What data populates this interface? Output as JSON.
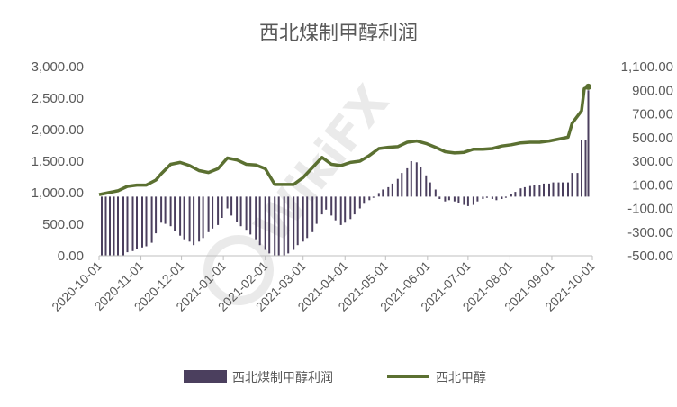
{
  "chart_data": {
    "type": "bar+line",
    "title": "西北煤制甲醇利润",
    "left_axis": {
      "ylim": [
        0,
        3000
      ],
      "ticks": [
        "3,000.00",
        "2,500.00",
        "2,000.00",
        "1,500.00",
        "1,000.00",
        "500.00",
        "0.00"
      ],
      "tick_values": [
        3000,
        2500,
        2000,
        1500,
        1000,
        500,
        0
      ]
    },
    "right_axis": {
      "ylim": [
        -500,
        1100
      ],
      "ticks": [
        "1,100.00",
        "900.00",
        "700.00",
        "500.00",
        "300.00",
        "100.00",
        "-100.00",
        "-300.00",
        "-500.00"
      ],
      "tick_values": [
        1100,
        900,
        700,
        500,
        300,
        100,
        -100,
        -300,
        -500
      ]
    },
    "x_axis": {
      "start": "2020-10-01",
      "end": "2021-10-01",
      "ticks": [
        "2020-10-01",
        "2020-11-01",
        "2020-12-01",
        "2021-01-01",
        "2021-02-01",
        "2021-03-01",
        "2021-04-01",
        "2021-05-01",
        "2021-06-01",
        "2021-07-01",
        "2021-08-01",
        "2021-09-01",
        "2021-10-01"
      ]
    },
    "bar_baseline": 0,
    "series": [
      {
        "name": "西北煤制甲醇利润",
        "type": "bar",
        "axis": "right",
        "color": "#4b3f5e",
        "points": [
          [
            "2020-10-03",
            -500
          ],
          [
            "2020-10-06",
            -500
          ],
          [
            "2020-10-09",
            -500
          ],
          [
            "2020-10-12",
            -500
          ],
          [
            "2020-10-15",
            -500
          ],
          [
            "2020-10-19",
            -500
          ],
          [
            "2020-10-22",
            -470
          ],
          [
            "2020-10-26",
            -460
          ],
          [
            "2020-10-29",
            -440
          ],
          [
            "2020-11-02",
            -430
          ],
          [
            "2020-11-05",
            -420
          ],
          [
            "2020-11-09",
            -390
          ],
          [
            "2020-11-12",
            -310
          ],
          [
            "2020-11-16",
            -220
          ],
          [
            "2020-11-19",
            -230
          ],
          [
            "2020-11-23",
            -250
          ],
          [
            "2020-11-26",
            -290
          ],
          [
            "2020-11-30",
            -330
          ],
          [
            "2020-12-03",
            -360
          ],
          [
            "2020-12-07",
            -380
          ],
          [
            "2020-12-10",
            -410
          ],
          [
            "2020-12-14",
            -380
          ],
          [
            "2020-12-17",
            -350
          ],
          [
            "2020-12-21",
            -300
          ],
          [
            "2020-12-24",
            -270
          ],
          [
            "2020-12-28",
            -240
          ],
          [
            "2020-12-31",
            -180
          ],
          [
            "2021-01-04",
            -100
          ],
          [
            "2021-01-07",
            -160
          ],
          [
            "2021-01-11",
            -210
          ],
          [
            "2021-01-14",
            -250
          ],
          [
            "2021-01-18",
            -280
          ],
          [
            "2021-01-21",
            -320
          ],
          [
            "2021-01-25",
            -360
          ],
          [
            "2021-01-28",
            -410
          ],
          [
            "2021-02-01",
            -450
          ],
          [
            "2021-02-04",
            -480
          ],
          [
            "2021-02-08",
            -500
          ],
          [
            "2021-02-11",
            -500
          ],
          [
            "2021-02-15",
            -500
          ],
          [
            "2021-02-18",
            -480
          ],
          [
            "2021-02-22",
            -450
          ],
          [
            "2021-02-25",
            -410
          ],
          [
            "2021-03-01",
            -380
          ],
          [
            "2021-03-04",
            -350
          ],
          [
            "2021-03-08",
            -300
          ],
          [
            "2021-03-11",
            -230
          ],
          [
            "2021-03-15",
            -150
          ],
          [
            "2021-03-18",
            -110
          ],
          [
            "2021-03-22",
            -160
          ],
          [
            "2021-03-25",
            -200
          ],
          [
            "2021-03-29",
            -240
          ],
          [
            "2021-04-01",
            -220
          ],
          [
            "2021-04-05",
            -190
          ],
          [
            "2021-04-08",
            -150
          ],
          [
            "2021-04-12",
            -100
          ],
          [
            "2021-04-15",
            -60
          ],
          [
            "2021-04-19",
            -30
          ],
          [
            "2021-04-22",
            -10
          ],
          [
            "2021-04-26",
            30
          ],
          [
            "2021-04-29",
            60
          ],
          [
            "2021-05-03",
            80
          ],
          [
            "2021-05-06",
            110
          ],
          [
            "2021-05-10",
            150
          ],
          [
            "2021-05-13",
            200
          ],
          [
            "2021-05-17",
            240
          ],
          [
            "2021-05-20",
            300
          ],
          [
            "2021-05-24",
            290
          ],
          [
            "2021-05-27",
            250
          ],
          [
            "2021-05-31",
            180
          ],
          [
            "2021-06-03",
            120
          ],
          [
            "2021-06-07",
            60
          ],
          [
            "2021-06-10",
            -20
          ],
          [
            "2021-06-14",
            -40
          ],
          [
            "2021-06-17",
            -30
          ],
          [
            "2021-06-21",
            -40
          ],
          [
            "2021-06-24",
            -50
          ],
          [
            "2021-06-28",
            -70
          ],
          [
            "2021-07-01",
            -80
          ],
          [
            "2021-07-05",
            -70
          ],
          [
            "2021-07-08",
            -40
          ],
          [
            "2021-07-12",
            -20
          ],
          [
            "2021-07-15",
            -10
          ],
          [
            "2021-07-19",
            -20
          ],
          [
            "2021-07-22",
            -30
          ],
          [
            "2021-07-26",
            -20
          ],
          [
            "2021-07-29",
            -10
          ],
          [
            "2021-08-02",
            20
          ],
          [
            "2021-08-05",
            40
          ],
          [
            "2021-08-09",
            70
          ],
          [
            "2021-08-12",
            80
          ],
          [
            "2021-08-16",
            90
          ],
          [
            "2021-08-19",
            100
          ],
          [
            "2021-08-23",
            100
          ],
          [
            "2021-08-26",
            110
          ],
          [
            "2021-08-30",
            110
          ],
          [
            "2021-09-02",
            120
          ],
          [
            "2021-09-06",
            120
          ],
          [
            "2021-09-09",
            120
          ],
          [
            "2021-09-13",
            120
          ],
          [
            "2021-09-16",
            200
          ],
          [
            "2021-09-20",
            200
          ],
          [
            "2021-09-23",
            480
          ],
          [
            "2021-09-26",
            480
          ],
          [
            "2021-09-28",
            900
          ]
        ]
      },
      {
        "name": "西北甲醇",
        "type": "line",
        "axis": "left",
        "color": "#5b7031",
        "points": [
          [
            "2020-10-01",
            970
          ],
          [
            "2020-10-08",
            1000
          ],
          [
            "2020-10-15",
            1030
          ],
          [
            "2020-10-22",
            1100
          ],
          [
            "2020-10-29",
            1120
          ],
          [
            "2020-11-05",
            1120
          ],
          [
            "2020-11-12",
            1200
          ],
          [
            "2020-11-16",
            1300
          ],
          [
            "2020-11-23",
            1450
          ],
          [
            "2020-11-30",
            1480
          ],
          [
            "2020-12-07",
            1430
          ],
          [
            "2020-12-14",
            1350
          ],
          [
            "2020-12-21",
            1320
          ],
          [
            "2020-12-28",
            1380
          ],
          [
            "2021-01-04",
            1550
          ],
          [
            "2021-01-11",
            1520
          ],
          [
            "2021-01-18",
            1450
          ],
          [
            "2021-01-25",
            1440
          ],
          [
            "2021-02-01",
            1380
          ],
          [
            "2021-02-08",
            1130
          ],
          [
            "2021-02-15",
            1130
          ],
          [
            "2021-02-22",
            1130
          ],
          [
            "2021-03-01",
            1240
          ],
          [
            "2021-03-08",
            1400
          ],
          [
            "2021-03-15",
            1560
          ],
          [
            "2021-03-22",
            1450
          ],
          [
            "2021-03-29",
            1430
          ],
          [
            "2021-04-05",
            1480
          ],
          [
            "2021-04-12",
            1500
          ],
          [
            "2021-04-19",
            1590
          ],
          [
            "2021-04-26",
            1700
          ],
          [
            "2021-05-03",
            1720
          ],
          [
            "2021-05-10",
            1730
          ],
          [
            "2021-05-17",
            1800
          ],
          [
            "2021-05-24",
            1820
          ],
          [
            "2021-05-31",
            1780
          ],
          [
            "2021-06-07",
            1720
          ],
          [
            "2021-06-14",
            1650
          ],
          [
            "2021-06-21",
            1630
          ],
          [
            "2021-06-28",
            1640
          ],
          [
            "2021-07-05",
            1690
          ],
          [
            "2021-07-12",
            1690
          ],
          [
            "2021-07-19",
            1700
          ],
          [
            "2021-07-26",
            1740
          ],
          [
            "2021-08-02",
            1760
          ],
          [
            "2021-08-09",
            1790
          ],
          [
            "2021-08-16",
            1800
          ],
          [
            "2021-08-23",
            1800
          ],
          [
            "2021-08-30",
            1820
          ],
          [
            "2021-09-06",
            1850
          ],
          [
            "2021-09-13",
            1880
          ],
          [
            "2021-09-16",
            2100
          ],
          [
            "2021-09-23",
            2300
          ],
          [
            "2021-09-25",
            2650
          ],
          [
            "2021-09-28",
            2680
          ]
        ]
      }
    ],
    "legend": {
      "placement": "bottom"
    },
    "grid": false
  },
  "watermark": {
    "text": "WikiFX"
  }
}
